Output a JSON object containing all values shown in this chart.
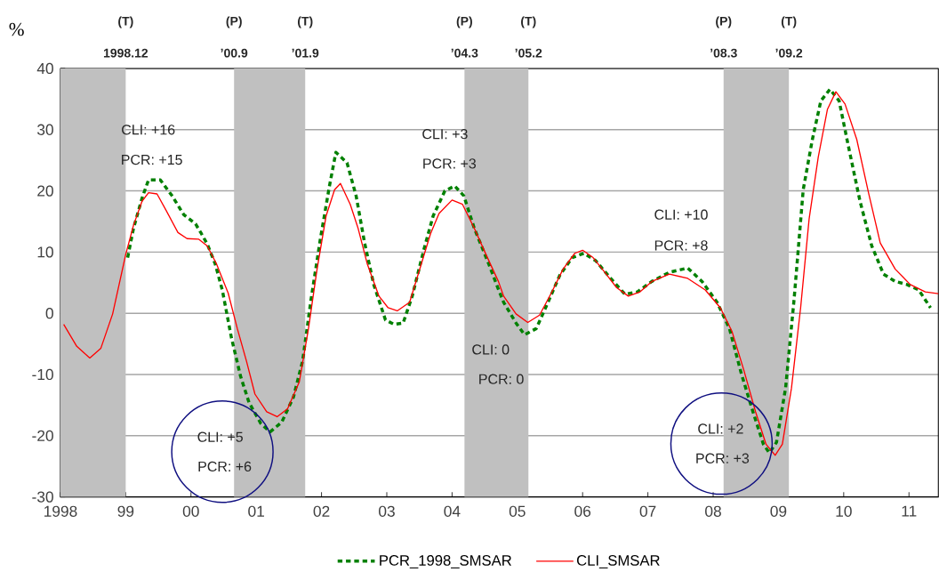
{
  "chart_data": {
    "type": "line",
    "ylabel": "%",
    "xlim": [
      1998,
      2011.45
    ],
    "ylim": [
      -30,
      40
    ],
    "xticks": [
      {
        "value": 1998,
        "label": "1998"
      },
      {
        "value": 1999,
        "label": "99"
      },
      {
        "value": 2000,
        "label": "00"
      },
      {
        "value": 2001,
        "label": "01"
      },
      {
        "value": 2002,
        "label": "02"
      },
      {
        "value": 2003,
        "label": "03"
      },
      {
        "value": 2004,
        "label": "04"
      },
      {
        "value": 2005,
        "label": "05"
      },
      {
        "value": 2006,
        "label": "06"
      },
      {
        "value": 2007,
        "label": "07"
      },
      {
        "value": 2008,
        "label": "08"
      },
      {
        "value": 2009,
        "label": "09"
      },
      {
        "value": 2010,
        "label": "10"
      },
      {
        "value": 2011,
        "label": "11"
      }
    ],
    "yticks": [
      -30,
      -20,
      -10,
      0,
      10,
      20,
      30,
      40
    ],
    "grid": "y",
    "legend": "bottom",
    "series": [
      {
        "name": "PCR_1998_SMSAR",
        "color": "#008000",
        "line_style": "dashed",
        "x": [
          1999.03,
          1999.12,
          1999.25,
          1999.35,
          1999.53,
          1999.71,
          1999.89,
          2000.07,
          2000.16,
          2000.25,
          2000.37,
          2000.48,
          2000.62,
          2000.76,
          2000.89,
          2001.07,
          2001.21,
          2001.39,
          2001.57,
          2001.71,
          2001.84,
          2001.98,
          2002.12,
          2002.22,
          2002.39,
          2002.53,
          2002.66,
          2002.8,
          2002.98,
          2003.11,
          2003.25,
          2003.39,
          2003.57,
          2003.71,
          2003.89,
          2004.04,
          2004.18,
          2004.34,
          2004.56,
          2004.7,
          2004.79,
          2004.98,
          2005.11,
          2005.29,
          2005.47,
          2005.65,
          2005.84,
          2006.02,
          2006.2,
          2006.43,
          2006.65,
          2006.84,
          2007.06,
          2007.33,
          2007.61,
          2007.83,
          2008.06,
          2008.25,
          2008.43,
          2008.61,
          2008.77,
          2008.86,
          2008.97,
          2009.11,
          2009.24,
          2009.38,
          2009.52,
          2009.65,
          2009.79,
          2009.93,
          2010.06,
          2010.25,
          2010.43,
          2010.61,
          2010.79,
          2010.97,
          2011.15,
          2011.33
        ],
        "values": [
          9.1,
          13.9,
          18.8,
          21.8,
          21.8,
          19.2,
          16.1,
          14.6,
          13.0,
          11.3,
          8.1,
          3.8,
          -4.0,
          -10.3,
          -14.6,
          -18.0,
          -19.4,
          -17.8,
          -13.7,
          -7.8,
          2.3,
          12.0,
          20.7,
          26.3,
          24.6,
          19.2,
          11.5,
          4.7,
          -1.1,
          -1.8,
          -1.6,
          2.8,
          10.5,
          15.9,
          20.0,
          20.8,
          19.2,
          13.9,
          8.1,
          4.2,
          1.8,
          -1.6,
          -3.5,
          -2.5,
          1.8,
          6.2,
          9.1,
          9.8,
          8.6,
          5.7,
          3.1,
          3.5,
          5.2,
          6.7,
          7.4,
          5.2,
          1.8,
          -2.5,
          -9.8,
          -16.1,
          -21.4,
          -22.8,
          -21.1,
          -12.2,
          2.3,
          20.2,
          28.4,
          34.7,
          36.6,
          34.7,
          27.9,
          18.3,
          11.0,
          6.4,
          5.2,
          4.7,
          3.8,
          0.9
        ]
      },
      {
        "name": "CLI_SMSAR",
        "color": "#ff0000",
        "line_style": "solid",
        "x": [
          1998.05,
          1998.25,
          1998.45,
          1998.62,
          1998.8,
          1999.0,
          1999.12,
          1999.25,
          1999.35,
          1999.48,
          1999.62,
          1999.8,
          1999.94,
          2000.12,
          2000.25,
          2000.39,
          2000.57,
          2000.71,
          2000.85,
          2000.98,
          2001.16,
          2001.32,
          2001.48,
          2001.66,
          2001.8,
          2001.93,
          2002.07,
          2002.2,
          2002.29,
          2002.44,
          2002.56,
          2002.7,
          2002.88,
          2003.02,
          2003.16,
          2003.35,
          2003.53,
          2003.67,
          2003.8,
          2004.0,
          2004.16,
          2004.34,
          2004.52,
          2004.71,
          2004.79,
          2004.98,
          2005.16,
          2005.34,
          2005.52,
          2005.7,
          2005.88,
          2006.0,
          2006.16,
          2006.34,
          2006.52,
          2006.7,
          2006.88,
          2007.06,
          2007.33,
          2007.61,
          2007.88,
          2008.11,
          2008.29,
          2008.47,
          2008.65,
          2008.81,
          2008.95,
          2009.06,
          2009.2,
          2009.34,
          2009.47,
          2009.61,
          2009.75,
          2009.88,
          2010.02,
          2010.2,
          2010.38,
          2010.56,
          2010.79,
          2011.02,
          2011.25,
          2011.45
        ],
        "values": [
          -1.8,
          -5.4,
          -7.3,
          -5.7,
          -0.1,
          9.6,
          14.4,
          18.3,
          19.7,
          19.5,
          16.8,
          13.2,
          12.2,
          12.1,
          11.0,
          8.1,
          3.3,
          -2.5,
          -7.8,
          -13.2,
          -16.1,
          -16.9,
          -15.6,
          -11.2,
          -2.5,
          7.1,
          15.9,
          20.2,
          21.2,
          17.8,
          13.9,
          8.1,
          2.8,
          0.9,
          0.4,
          1.8,
          8.1,
          13.0,
          16.3,
          18.5,
          17.8,
          13.9,
          9.6,
          5.2,
          2.8,
          -0.1,
          -1.5,
          -0.3,
          3.3,
          7.2,
          9.8,
          10.3,
          9.1,
          6.7,
          4.2,
          2.8,
          3.5,
          5.2,
          6.4,
          5.7,
          3.8,
          0.9,
          -3.0,
          -9.3,
          -16.1,
          -21.4,
          -23.2,
          -21.4,
          -12.2,
          0.9,
          15.4,
          25.5,
          33.3,
          36.2,
          34.2,
          28.4,
          19.7,
          11.5,
          7.2,
          4.7,
          3.5,
          3.2
        ]
      }
    ],
    "bands": [
      {
        "axis": "x",
        "from": 1998.0,
        "to": 1999.0,
        "color": "#c0c0c0"
      },
      {
        "axis": "x",
        "from": 2000.66,
        "to": 2001.75,
        "color": "#c0c0c0"
      },
      {
        "axis": "x",
        "from": 2004.19,
        "to": 2005.17,
        "color": "#c0c0c0"
      },
      {
        "axis": "x",
        "from": 2008.16,
        "to": 2009.16,
        "color": "#c0c0c0"
      }
    ],
    "annotations": [
      "CLI: +16",
      "PCR: +15",
      "CLI: +3",
      "PCR: +3",
      "CLI: 0",
      "PCR: 0",
      "CLI: +10",
      "PCR: +8",
      "CLI: +5",
      "PCR: +6",
      "CLI: +2",
      "PCR: +3",
      "(T)",
      "1998.12",
      "(P)",
      "’00.9",
      "(T)",
      "’01.9",
      "(P)",
      "’04.3",
      "(T)",
      "’05.2",
      "(P)",
      "’08.3",
      "(T)",
      "’09.2"
    ]
  }
}
